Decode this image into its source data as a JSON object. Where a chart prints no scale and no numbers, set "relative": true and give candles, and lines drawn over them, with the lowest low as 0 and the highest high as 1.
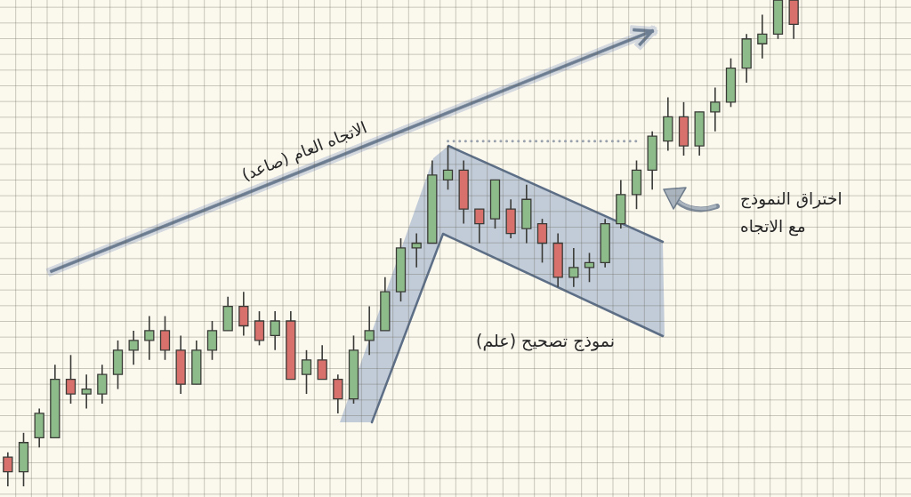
{
  "chart_data": {
    "type": "candlestick",
    "relative": true,
    "grid": true,
    "marker": "none",
    "tick_labels": false,
    "categories": [
      null,
      null,
      null,
      null,
      null,
      null,
      null,
      null,
      null,
      null,
      null,
      null,
      null,
      null,
      null,
      null,
      null,
      null,
      null,
      null,
      null,
      null,
      null,
      null,
      null,
      null,
      null,
      null,
      null,
      null,
      null,
      null,
      null,
      null,
      null,
      null,
      null,
      null,
      null,
      null,
      null,
      null,
      null,
      null,
      null,
      null,
      null,
      null,
      null,
      null,
      null
    ],
    "ohlc": [
      [
        0.06,
        0.07,
        0,
        0.03
      ],
      [
        0.03,
        0.11,
        0,
        0.09
      ],
      [
        0.1,
        0.16,
        0.08,
        0.15
      ],
      [
        0.1,
        0.25,
        0.1,
        0.22
      ],
      [
        0.22,
        0.27,
        0.17,
        0.19
      ],
      [
        0.19,
        0.23,
        0.16,
        0.2
      ],
      [
        0.19,
        0.25,
        0.17,
        0.23
      ],
      [
        0.23,
        0.3,
        0.2,
        0.28
      ],
      [
        0.28,
        0.32,
        0.25,
        0.3
      ],
      [
        0.3,
        0.35,
        0.26,
        0.32
      ],
      [
        0.32,
        0.35,
        0.26,
        0.28
      ],
      [
        0.28,
        0.31,
        0.19,
        0.21
      ],
      [
        0.21,
        0.3,
        0.21,
        0.28
      ],
      [
        0.28,
        0.34,
        0.26,
        0.32
      ],
      [
        0.32,
        0.39,
        0.32,
        0.37
      ],
      [
        0.37,
        0.4,
        0.31,
        0.33
      ],
      [
        0.34,
        0.36,
        0.29,
        0.3
      ],
      [
        0.31,
        0.36,
        0.28,
        0.34
      ],
      [
        0.34,
        0.36,
        0.22,
        0.22
      ],
      [
        0.23,
        0.28,
        0.19,
        0.26
      ],
      [
        0.26,
        0.29,
        0.22,
        0.22
      ],
      [
        0.22,
        0.23,
        0.15,
        0.18
      ],
      [
        0.18,
        0.31,
        0.17,
        0.28
      ],
      [
        0.3,
        0.37,
        0.27,
        0.32
      ],
      [
        0.32,
        0.43,
        0.32,
        0.4
      ],
      [
        0.4,
        0.51,
        0.38,
        0.49
      ],
      [
        0.49,
        0.52,
        0.45,
        0.5
      ],
      [
        0.5,
        0.67,
        0.5,
        0.64
      ],
      [
        0.63,
        0.7,
        0.61,
        0.65
      ],
      [
        0.65,
        0.67,
        0.54,
        0.57
      ],
      [
        0.57,
        0.57,
        0.5,
        0.54
      ],
      [
        0.55,
        0.63,
        0.53,
        0.63
      ],
      [
        0.57,
        0.59,
        0.51,
        0.52
      ],
      [
        0.53,
        0.62,
        0.5,
        0.59
      ],
      [
        0.54,
        0.55,
        0.46,
        0.5
      ],
      [
        0.5,
        0.52,
        0.41,
        0.43
      ],
      [
        0.43,
        0.49,
        0.41,
        0.45
      ],
      [
        0.45,
        0.48,
        0.42,
        0.46
      ],
      [
        0.46,
        0.55,
        0.45,
        0.54
      ],
      [
        0.54,
        0.63,
        0.53,
        0.6
      ],
      [
        0.6,
        0.67,
        0.57,
        0.65
      ],
      [
        0.65,
        0.73,
        0.61,
        0.72
      ],
      [
        0.71,
        0.8,
        0.69,
        0.76
      ],
      [
        0.76,
        0.79,
        0.68,
        0.7
      ],
      [
        0.7,
        0.77,
        0.68,
        0.77
      ],
      [
        0.77,
        0.82,
        0.73,
        0.79
      ],
      [
        0.79,
        0.88,
        0.78,
        0.86
      ],
      [
        0.86,
        0.93,
        0.83,
        0.92
      ],
      [
        0.91,
        0.97,
        0.88,
        0.93
      ],
      [
        0.93,
        1,
        0.92,
        1
      ],
      [
        1,
        1,
        0.92,
        0.95
      ]
    ],
    "colors": [
      "#d8716c",
      "#8dbb8a",
      "#8dbb8a",
      "#8dbb8a",
      "#d8716c",
      "#8dbb8a",
      "#8dbb8a",
      "#8dbb8a",
      "#8dbb8a",
      "#8dbb8a",
      "#d8716c",
      "#d8716c",
      "#8dbb8a",
      "#8dbb8a",
      "#8dbb8a",
      "#d8716c",
      "#d8716c",
      "#8dbb8a",
      "#d8716c",
      "#8dbb8a",
      "#d8716c",
      "#d8716c",
      "#8dbb8a",
      "#8dbb8a",
      "#8dbb8a",
      "#8dbb8a",
      "#8dbb8a",
      "#8dbb8a",
      "#8dbb8a",
      "#d8716c",
      "#d8716c",
      "#8dbb8a",
      "#d8716c",
      "#8dbb8a",
      "#d8716c",
      "#d8716c",
      "#8dbb8a",
      "#8dbb8a",
      "#8dbb8a",
      "#8dbb8a",
      "#8dbb8a",
      "#8dbb8a",
      "#8dbb8a",
      "#d8716c",
      "#8dbb8a",
      "#8dbb8a",
      "#8dbb8a",
      "#8dbb8a",
      "#8dbb8a",
      "#8dbb8a",
      "#d8716c"
    ],
    "series": [
      {
        "type": "line",
        "color": "#9aa3ad",
        "line_style": "dotted",
        "values": [
          null,
          null,
          null,
          null,
          null,
          null,
          null,
          null,
          null,
          null,
          null,
          null,
          null,
          null,
          null,
          null,
          null,
          null,
          null,
          null,
          null,
          null,
          null,
          null,
          null,
          null,
          null,
          null,
          0.71,
          0.71,
          0.71,
          0.71,
          0.71,
          0.71,
          0.71,
          0.71,
          0.71,
          0.71,
          0.71,
          0.71,
          0.71,
          null,
          null,
          null,
          null,
          null,
          null,
          null,
          null,
          null,
          null
        ]
      }
    ],
    "annotations": [
      "الاتجاه العام (صاعد)",
      "نموذج تصحيح (علم)",
      "اختراق النموذج\nمع الاتجاه"
    ]
  }
}
